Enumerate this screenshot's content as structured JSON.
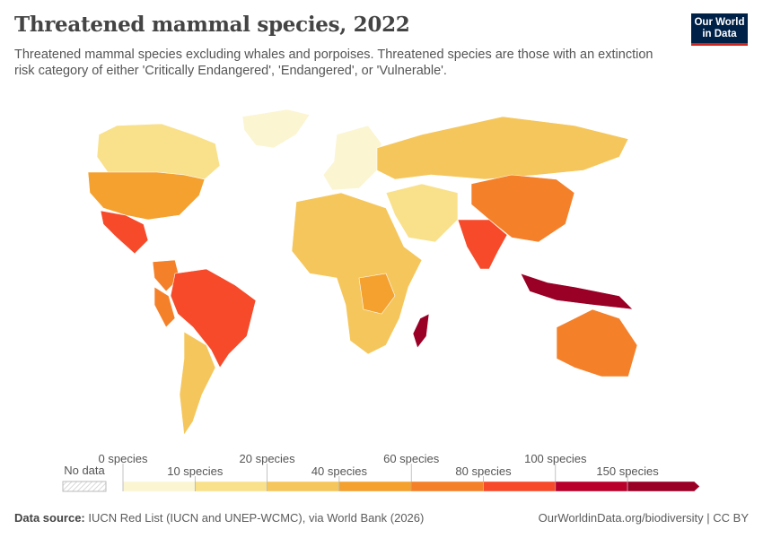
{
  "header": {
    "title": "Threatened mammal species, 2022",
    "subtitle": "Threatened mammal species excluding whales and porpoises. Threatened species are those with an extinction risk category of either 'Critically Endangered', 'Endangered', or 'Vulnerable'.",
    "logo": "Our World in Data"
  },
  "legend": {
    "no_data_label": "No data",
    "bins": [
      {
        "label": "0 species",
        "color": "#fbf5d2"
      },
      {
        "label": "10 species",
        "color": "#f9e18b"
      },
      {
        "label": "20 species",
        "color": "#f5c65b"
      },
      {
        "label": "40 species",
        "color": "#f4a12f"
      },
      {
        "label": "60 species",
        "color": "#f5802a"
      },
      {
        "label": "80 species",
        "color": "#f64a2a"
      },
      {
        "label": "100 species",
        "color": "#b9002b"
      },
      {
        "label": "150 species",
        "color": "#9a0026"
      }
    ]
  },
  "map_data": {
    "year": 2022,
    "regions": [
      {
        "name": "Canada",
        "bin": 1
      },
      {
        "name": "United States",
        "bin": 3
      },
      {
        "name": "Mexico",
        "bin": 5
      },
      {
        "name": "Greenland",
        "bin": 0
      },
      {
        "name": "Brazil",
        "bin": 5
      },
      {
        "name": "Colombia",
        "bin": 4
      },
      {
        "name": "Peru",
        "bin": 4
      },
      {
        "name": "Argentina",
        "bin": 2
      },
      {
        "name": "Russia",
        "bin": 2
      },
      {
        "name": "Europe",
        "bin": 0
      },
      {
        "name": "China",
        "bin": 4
      },
      {
        "name": "India",
        "bin": 5
      },
      {
        "name": "Indonesia",
        "bin": 7
      },
      {
        "name": "Australia",
        "bin": 4
      },
      {
        "name": "Madagascar",
        "bin": 7
      },
      {
        "name": "Africa",
        "bin": 2
      },
      {
        "name": "DR Congo",
        "bin": 3
      },
      {
        "name": "Middle East",
        "bin": 1
      }
    ]
  },
  "footer": {
    "source_label": "Data source:",
    "source": "IUCN Red List (IUCN and UNEP-WCMC), via World Bank (2026)",
    "link": "OurWorldinData.org/biodiversity | CC BY"
  }
}
